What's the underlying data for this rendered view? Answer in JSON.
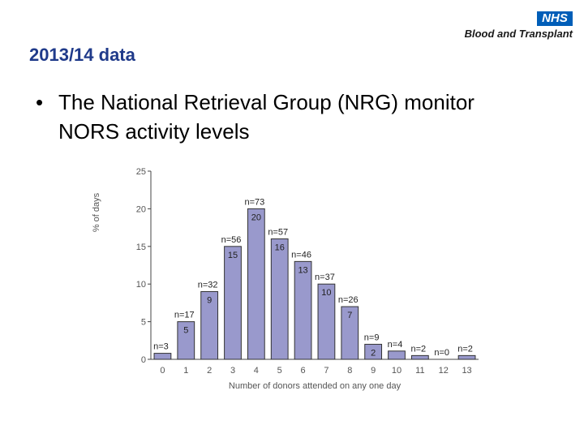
{
  "logo": {
    "badge": "NHS",
    "text": "Blood and Transplant"
  },
  "slide": {
    "title": "2013/14 data",
    "bullet": "The National Retrieval Group (NRG) monitor NORS activity levels"
  },
  "chart_data": {
    "type": "bar",
    "xlabel": "Number of donors attended on any one day",
    "ylabel": "% of days",
    "ylim": [
      0,
      25
    ],
    "yticks": [
      0,
      5,
      10,
      15,
      20,
      25
    ],
    "categories": [
      "0",
      "1",
      "2",
      "3",
      "4",
      "5",
      "6",
      "7",
      "8",
      "9",
      "10",
      "11",
      "12",
      "13"
    ],
    "values": [
      0.8,
      5,
      9,
      15,
      20,
      16,
      13,
      10,
      7,
      2,
      1.1,
      0.5,
      0,
      0.5
    ],
    "value_labels": [
      "",
      "5",
      "9",
      "15",
      "20",
      "16",
      "13",
      "10",
      "7",
      "2",
      "",
      "",
      "",
      ""
    ],
    "n_labels": [
      "n=3",
      "n=17",
      "n=32",
      "n=56",
      "n=73",
      "n=57",
      "n=46",
      "n=37",
      "n=26",
      "n=9",
      "n=4",
      "n=2",
      "n=0",
      "n=2"
    ],
    "colors": {
      "bar": "#9999cc",
      "bar_stroke": "#333333",
      "axis": "#444444"
    }
  }
}
